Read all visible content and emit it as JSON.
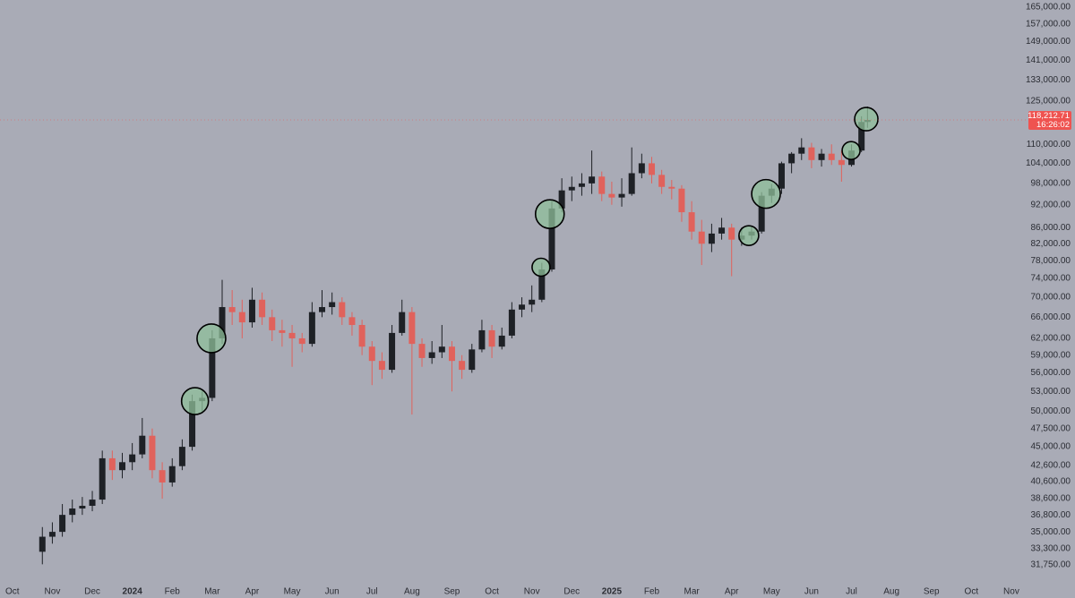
{
  "chart_data": {
    "type": "candlestick",
    "log_scale": true,
    "grid": false,
    "up_color": "#1e2126",
    "down_color": "#e0625c",
    "highlight_fill": "#8fbf9a",
    "highlight_stroke": "#000000",
    "last_price": {
      "value": 118212.71,
      "label": "118,212.71"
    },
    "countdown": "16:26:02",
    "tag_color": "#ef5350",
    "xlim": [
      -0.31,
      25.36
    ],
    "ylim": [
      30350,
      168500
    ],
    "xticks": [
      {
        "value": 0,
        "label": "Oct"
      },
      {
        "value": 1,
        "label": "Nov"
      },
      {
        "value": 2,
        "label": "Dec"
      },
      {
        "value": 3,
        "label": "2024"
      },
      {
        "value": 4,
        "label": "Feb"
      },
      {
        "value": 5,
        "label": "Mar"
      },
      {
        "value": 6,
        "label": "Apr"
      },
      {
        "value": 7,
        "label": "May"
      },
      {
        "value": 8,
        "label": "Jun"
      },
      {
        "value": 9,
        "label": "Jul"
      },
      {
        "value": 10,
        "label": "Aug"
      },
      {
        "value": 11,
        "label": "Sep"
      },
      {
        "value": 12,
        "label": "Oct"
      },
      {
        "value": 13,
        "label": "Nov"
      },
      {
        "value": 14,
        "label": "Dec"
      },
      {
        "value": 15,
        "label": "2025"
      },
      {
        "value": 16,
        "label": "Feb"
      },
      {
        "value": 17,
        "label": "Mar"
      },
      {
        "value": 18,
        "label": "Apr"
      },
      {
        "value": 19,
        "label": "May"
      },
      {
        "value": 20,
        "label": "Jun"
      },
      {
        "value": 21,
        "label": "Jul"
      },
      {
        "value": 22,
        "label": "Aug"
      },
      {
        "value": 23,
        "label": "Sep"
      },
      {
        "value": 24,
        "label": "Oct"
      },
      {
        "value": 25,
        "label": "Nov"
      }
    ],
    "yticks": [
      {
        "value": 31750,
        "label": "31,750.00"
      },
      {
        "value": 33300,
        "label": "33,300.00"
      },
      {
        "value": 35000,
        "label": "35,000.00"
      },
      {
        "value": 36800,
        "label": "36,800.00"
      },
      {
        "value": 38600,
        "label": "38,600.00"
      },
      {
        "value": 40600,
        "label": "40,600.00"
      },
      {
        "value": 42600,
        "label": "42,600.00"
      },
      {
        "value": 45000,
        "label": "45,000.00"
      },
      {
        "value": 47500,
        "label": "47,500.00"
      },
      {
        "value": 50000,
        "label": "50,000.00"
      },
      {
        "value": 53000,
        "label": "53,000.00"
      },
      {
        "value": 56000,
        "label": "56,000.00"
      },
      {
        "value": 59000,
        "label": "59,000.00"
      },
      {
        "value": 62000,
        "label": "62,000.00"
      },
      {
        "value": 66000,
        "label": "66,000.00"
      },
      {
        "value": 70000,
        "label": "70,000.00"
      },
      {
        "value": 74000,
        "label": "74,000.00"
      },
      {
        "value": 78000,
        "label": "78,000.00"
      },
      {
        "value": 82000,
        "label": "82,000.00"
      },
      {
        "value": 86000,
        "label": "86,000.00"
      },
      {
        "value": 92000,
        "label": "92,000.00"
      },
      {
        "value": 98000,
        "label": "98,000.00"
      },
      {
        "value": 104000,
        "label": "104,000.00"
      },
      {
        "value": 110000,
        "label": "110,000.00"
      },
      {
        "value": 125000,
        "label": "125,000.00"
      },
      {
        "value": 133000,
        "label": "133,000.00"
      },
      {
        "value": 141000,
        "label": "141,000.00"
      },
      {
        "value": 149000,
        "label": "149,000.00"
      },
      {
        "value": 157000,
        "label": "157,000.00"
      },
      {
        "value": 165000,
        "label": "165,000.00"
      }
    ],
    "x": [
      0.75,
      1,
      1.25,
      1.5,
      1.75,
      2,
      2.25,
      2.5,
      2.75,
      3,
      3.25,
      3.5,
      3.75,
      4,
      4.25,
      4.5,
      4.75,
      5,
      5.25,
      5.5,
      5.75,
      6,
      6.25,
      6.5,
      6.75,
      7,
      7.25,
      7.5,
      7.75,
      8,
      8.25,
      8.5,
      8.75,
      9,
      9.25,
      9.5,
      9.75,
      10,
      10.25,
      10.5,
      10.75,
      11,
      11.25,
      11.5,
      11.75,
      12,
      12.25,
      12.5,
      12.75,
      13,
      13.25,
      13.5,
      13.75,
      14,
      14.25,
      14.5,
      14.75,
      15,
      15.25,
      15.5,
      15.75,
      16,
      16.25,
      16.5,
      16.75,
      17,
      17.25,
      17.5,
      17.75,
      18,
      18.25,
      18.5,
      18.75,
      19,
      19.25,
      19.5,
      19.75,
      20,
      20.25,
      20.5,
      20.75,
      21,
      21.25,
      21.4
    ],
    "open": [
      33000,
      34500,
      35000,
      36800,
      37500,
      37800,
      38500,
      43500,
      42000,
      43000,
      44000,
      46500,
      42000,
      40500,
      42500,
      45000,
      51500,
      52000,
      62000,
      68000,
      67000,
      65000,
      69500,
      66000,
      63500,
      63000,
      62000,
      61000,
      67000,
      68000,
      69000,
      66000,
      64500,
      60500,
      58000,
      56500,
      63000,
      67000,
      61000,
      58500,
      59500,
      60500,
      58000,
      56500,
      60000,
      63500,
      60500,
      62500,
      67500,
      68500,
      69500,
      76000,
      91000,
      96000,
      97000,
      98000,
      100000,
      95000,
      94000,
      95000,
      101000,
      104000,
      100500,
      97000,
      96500,
      90000,
      85000,
      82000,
      84500,
      86000,
      83000,
      84000,
      85000,
      94500,
      96500,
      104000,
      107000,
      109000,
      105000,
      107000,
      105000,
      103500,
      108000,
      117500
    ],
    "high": [
      35500,
      36000,
      38000,
      38500,
      38800,
      39500,
      44500,
      44500,
      44200,
      45500,
      49000,
      47500,
      43000,
      43500,
      46000,
      52500,
      53000,
      63500,
      73700,
      71500,
      69500,
      72000,
      71000,
      67500,
      65500,
      64500,
      63000,
      69000,
      71500,
      71000,
      70000,
      67000,
      65500,
      61500,
      59500,
      64500,
      69500,
      68000,
      62000,
      61500,
      64500,
      61500,
      59000,
      61000,
      65500,
      64500,
      64000,
      69000,
      70000,
      72500,
      77500,
      93000,
      99500,
      100000,
      101000,
      108000,
      101500,
      98500,
      99500,
      109000,
      107000,
      106000,
      102000,
      99000,
      97500,
      93000,
      88000,
      87000,
      88500,
      87000,
      86000,
      86500,
      95500,
      97800,
      104500,
      107500,
      112000,
      110500,
      108500,
      110000,
      108000,
      110000,
      119500,
      123000
    ],
    "low": [
      31800,
      33800,
      34500,
      36000,
      36800,
      37200,
      38000,
      40800,
      41000,
      42000,
      43500,
      41000,
      38600,
      40000,
      42000,
      44500,
      50000,
      51500,
      61000,
      64500,
      62000,
      64000,
      64500,
      61500,
      60500,
      57000,
      59500,
      60500,
      66000,
      66500,
      64500,
      62500,
      59000,
      54000,
      55000,
      56000,
      62500,
      49500,
      57000,
      57500,
      58500,
      53000,
      55000,
      56000,
      59500,
      58500,
      60000,
      62000,
      66000,
      67000,
      69000,
      75500,
      90000,
      93000,
      94500,
      95000,
      93000,
      92000,
      91500,
      94500,
      99500,
      98000,
      95000,
      93500,
      87500,
      83000,
      77000,
      80000,
      83000,
      74500,
      81500,
      83000,
      84500,
      92500,
      95000,
      101000,
      105000,
      102500,
      103000,
      103500,
      98500,
      103000,
      107500,
      115500
    ],
    "close": [
      34500,
      35000,
      36800,
      37500,
      37800,
      38500,
      43500,
      42000,
      43000,
      44000,
      46500,
      42000,
      40500,
      42500,
      45000,
      51500,
      52000,
      62000,
      68000,
      67000,
      65000,
      69500,
      66000,
      63500,
      63000,
      62000,
      61000,
      67000,
      68000,
      69000,
      66000,
      64500,
      60500,
      58000,
      56500,
      63000,
      67000,
      61000,
      58500,
      59500,
      60500,
      58000,
      56500,
      60000,
      63500,
      60500,
      62500,
      67500,
      68500,
      69500,
      76000,
      91000,
      96000,
      97000,
      98000,
      100000,
      95000,
      94000,
      95000,
      101000,
      104000,
      100500,
      97000,
      96500,
      90000,
      85000,
      82000,
      84500,
      86000,
      83000,
      84000,
      85000,
      94500,
      96500,
      104000,
      107000,
      109000,
      105000,
      107000,
      105000,
      103500,
      108000,
      117500,
      118212.71
    ],
    "highlights": [
      {
        "x": 4.57,
        "y": 51500
      },
      {
        "x": 4.98,
        "y": 62000
      },
      {
        "x": 13.23,
        "y": 76500
      },
      {
        "x": 13.45,
        "y": 89500
      },
      {
        "x": 18.43,
        "y": 84000
      },
      {
        "x": 18.86,
        "y": 95000
      },
      {
        "x": 20.99,
        "y": 108000
      },
      {
        "x": 21.37,
        "y": 118500
      }
    ]
  }
}
